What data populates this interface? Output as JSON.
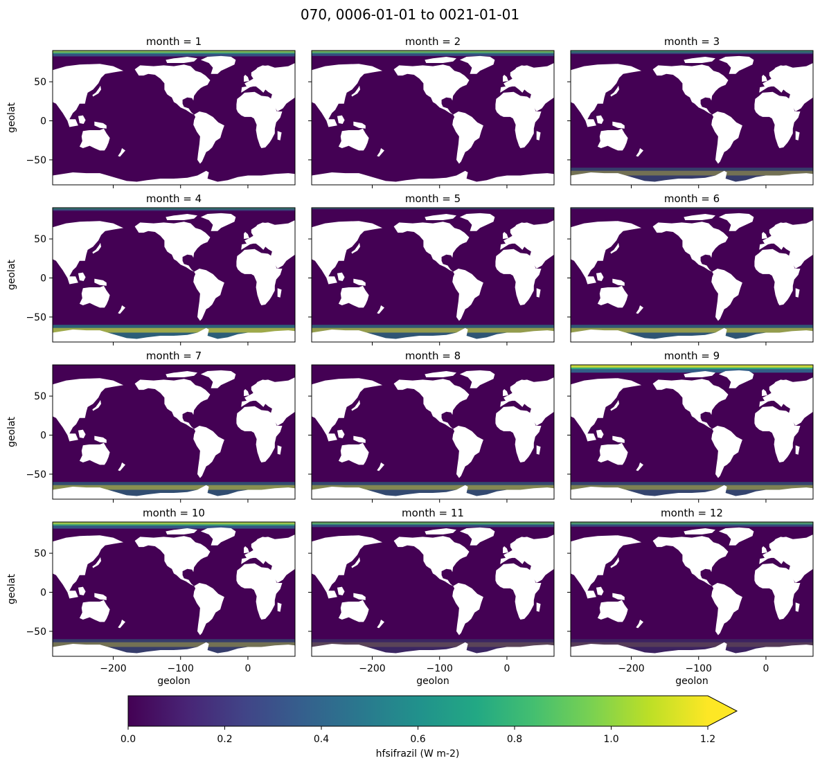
{
  "chart_data": {
    "type": "heatmap",
    "title": "070, 0006-01-01 to 0021-01-01",
    "xlabel": "geolon",
    "ylabel": "geolat",
    "xlim": [
      -290,
      70
    ],
    "ylim": [
      -82,
      90
    ],
    "xticks": [
      -200,
      -100,
      0
    ],
    "xtick_labels": [
      "−200",
      "−100",
      "0"
    ],
    "yticks": [
      50,
      0,
      -50
    ],
    "ytick_labels": [
      "50",
      "0",
      "−50"
    ],
    "colormap": "viridis",
    "colorbar": {
      "label": "hfsifrazil (W m-2)",
      "vmin": 0.0,
      "vmax": 1.2,
      "extend": "max",
      "ticks": [
        0.0,
        0.2,
        0.4,
        0.6,
        0.8,
        1.0,
        1.2
      ],
      "tick_labels": [
        "0.0",
        "0.2",
        "0.4",
        "0.6",
        "0.8",
        "1.0",
        "1.2"
      ]
    },
    "colors": {
      "ocean_background": "#440154",
      "land": "#ffffff",
      "high_value": "#fde725",
      "mid_value": "#35b779"
    },
    "panels": [
      {
        "title": "month = 1",
        "arctic_activity": 0.75,
        "antarctic_activity": 0.0
      },
      {
        "title": "month = 2",
        "arctic_activity": 0.7,
        "antarctic_activity": 0.0
      },
      {
        "title": "month = 3",
        "arctic_activity": 0.45,
        "antarctic_activity": 0.35
      },
      {
        "title": "month = 4",
        "arctic_activity": 0.4,
        "antarctic_activity": 0.75
      },
      {
        "title": "month = 5",
        "arctic_activity": 0.2,
        "antarctic_activity": 0.65
      },
      {
        "title": "month = 6",
        "arctic_activity": 0.05,
        "antarctic_activity": 0.65
      },
      {
        "title": "month = 7",
        "arctic_activity": 0.0,
        "antarctic_activity": 0.55
      },
      {
        "title": "month = 8",
        "arctic_activity": 0.0,
        "antarctic_activity": 0.5
      },
      {
        "title": "month = 9",
        "arctic_activity": 1.0,
        "antarctic_activity": 0.45
      },
      {
        "title": "month = 10",
        "arctic_activity": 0.85,
        "antarctic_activity": 0.35
      },
      {
        "title": "month = 11",
        "arctic_activity": 0.65,
        "antarctic_activity": 0.1
      },
      {
        "title": "month = 12",
        "arctic_activity": 0.6,
        "antarctic_activity": 0.05
      }
    ]
  }
}
